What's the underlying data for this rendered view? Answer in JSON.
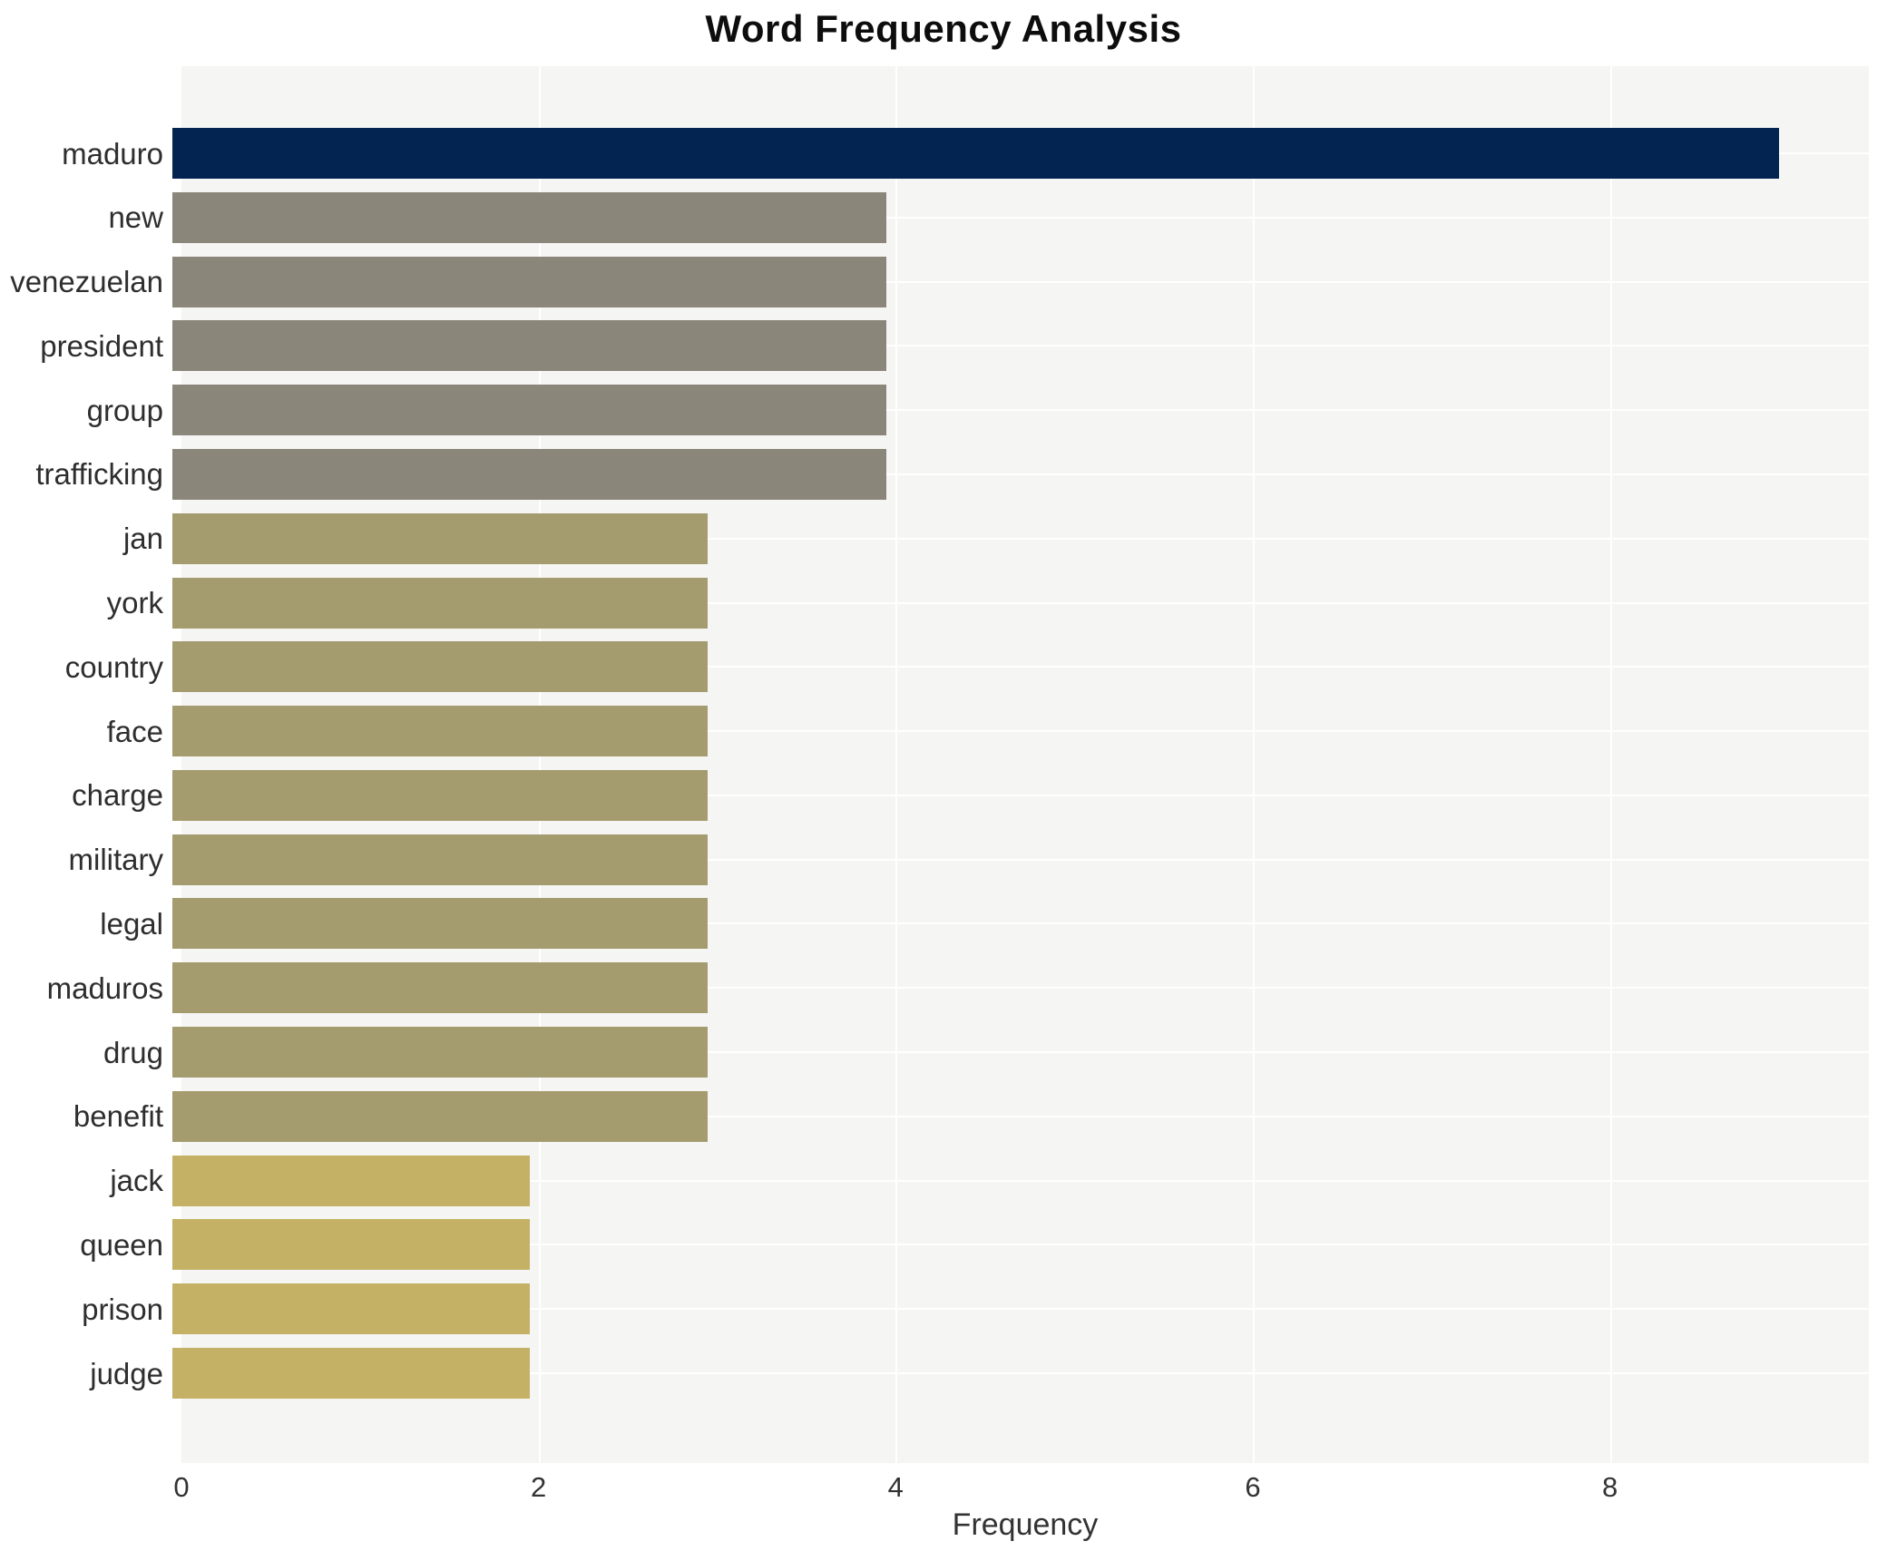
{
  "chart_data": {
    "type": "bar",
    "orientation": "horizontal",
    "title": "Word Frequency Analysis",
    "xlabel": "Frequency",
    "ylabel": "",
    "categories": [
      "maduro",
      "new",
      "venezuelan",
      "president",
      "group",
      "trafficking",
      "jan",
      "york",
      "country",
      "face",
      "charge",
      "military",
      "legal",
      "maduros",
      "drug",
      "benefit",
      "jack",
      "queen",
      "prison",
      "judge"
    ],
    "values": [
      9,
      4,
      4,
      4,
      4,
      4,
      3,
      3,
      3,
      3,
      3,
      3,
      3,
      3,
      3,
      3,
      2,
      2,
      2,
      2
    ],
    "bar_colors": [
      "#032451",
      "#8a867a",
      "#8a867a",
      "#8a867a",
      "#8a867a",
      "#8a867a",
      "#a49b6e",
      "#a49b6e",
      "#a49b6e",
      "#a49b6e",
      "#a49b6e",
      "#a49b6e",
      "#a49b6e",
      "#a49b6e",
      "#a49b6e",
      "#a49b6e",
      "#c4b165",
      "#c4b165",
      "#c4b165",
      "#c4b165"
    ],
    "xticks": [
      0,
      2,
      4,
      6,
      8
    ],
    "xlim": [
      0,
      9.45
    ],
    "grid": "white vertical gridlines at x ticks and white horizontal gridlines at category centers",
    "legend": "none",
    "plot_background": "#f5f5f3",
    "figure_background": "#ffffff",
    "grid_color": "#ffffff",
    "tick_label_color": "#333333",
    "category_label_color": "#2e2e2e",
    "title_color": "#0d0d0d"
  }
}
